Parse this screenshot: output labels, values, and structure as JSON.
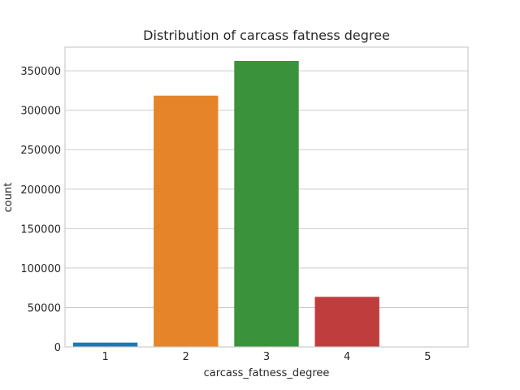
{
  "chart_data": {
    "type": "bar",
    "title": "Distribution of carcass fatness degree",
    "xlabel": "carcass_fatness_degree",
    "ylabel": "count",
    "categories": [
      "1",
      "2",
      "3",
      "4",
      "5"
    ],
    "values": [
      5500,
      318500,
      362500,
      63500,
      300
    ],
    "ylim": [
      0,
      380000
    ],
    "yticks": [
      0,
      50000,
      100000,
      150000,
      200000,
      250000,
      300000,
      350000
    ],
    "ytick_labels": [
      "0",
      "50000",
      "100000",
      "150000",
      "200000",
      "250000",
      "300000",
      "350000"
    ],
    "colors": [
      "#1f77b4",
      "#e6842a",
      "#3a923a",
      "#c03d3e",
      "#9372b2"
    ],
    "grid": "horizontal",
    "legend": "none"
  }
}
